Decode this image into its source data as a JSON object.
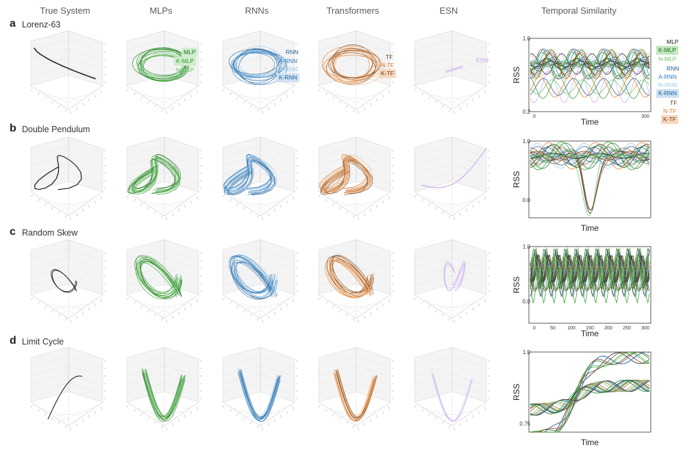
{
  "columns": [
    "True System",
    "MLPs",
    "RNNs",
    "Transformers",
    "ESN",
    "Temporal Similarity"
  ],
  "rows": [
    {
      "letter": "a",
      "title": "Lorenz-63"
    },
    {
      "letter": "b",
      "title": "Double Pendulum"
    },
    {
      "letter": "c",
      "title": "Random Skew"
    },
    {
      "letter": "d",
      "title": "Limit Cycle"
    }
  ],
  "colors": {
    "true": "#1a1a1a",
    "mlp": "#2e9e2e",
    "mlp_light": "#8fd48a",
    "rnn": "#2f7fc1",
    "rnn_light": "#9cc8ea",
    "tf": "#e07b2a",
    "tf_dark": "#6b3a12",
    "esn": "#c9a8f0"
  },
  "legend_mlp": [
    "MLP",
    "K-MLP",
    "N-MLP"
  ],
  "legend_rnn": [
    "RNN",
    "A-RNN",
    "N-RNN",
    "K-RNN"
  ],
  "legend_tf": [
    "TF",
    "N-TF",
    "K-TF"
  ],
  "legend_esn": "ESN",
  "side_legend": [
    "MLP",
    "K-MLP",
    "N-MLP",
    "RNN",
    "A-RNN",
    "N-RNN",
    "K-RNN",
    "TF",
    "N-TF",
    "K-TF"
  ],
  "chart_data": [
    {
      "type": "line",
      "title": "Lorenz-63",
      "xlabel": "Time",
      "ylabel": "RSS",
      "x_ticks": [
        "0",
        "300"
      ],
      "y_ticks": [
        "1.0",
        "0.2"
      ],
      "xlim": [
        0,
        300
      ],
      "ylim": [
        0.2,
        1.0
      ]
    },
    {
      "type": "line",
      "title": "Double Pendulum",
      "xlabel": "Time",
      "ylabel": "RSS",
      "x_ticks": [],
      "y_ticks": [
        "1.0",
        "0.0"
      ],
      "ylim": [
        -0.3,
        1.0
      ]
    },
    {
      "type": "line",
      "title": "Random Skew",
      "xlabel": "Time",
      "ylabel": "RSS",
      "x_ticks": [
        "0",
        "50",
        "100",
        "150",
        "200",
        "250",
        "300"
      ],
      "y_ticks": [
        "1.0",
        "0.0"
      ],
      "xlim": [
        0,
        300
      ],
      "ylim": [
        -0.4,
        1.0
      ]
    },
    {
      "type": "line",
      "title": "Limit Cycle",
      "xlabel": "Time",
      "ylabel": "RSS",
      "x_ticks": [],
      "y_ticks": [
        "1.0",
        "0.75"
      ],
      "ylim": [
        0.72,
        1.0
      ]
    }
  ]
}
